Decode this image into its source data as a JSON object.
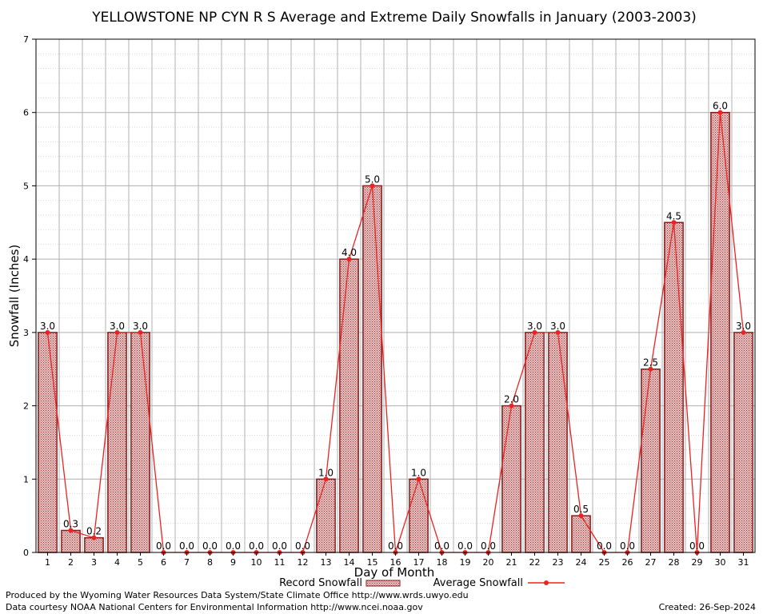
{
  "chart_data": {
    "type": "bar",
    "title": "YELLOWSTONE NP CYN R S Average and Extreme Daily Snowfalls in January (2003-2003)",
    "xlabel": "Day of Month",
    "ylabel": "Snowfall (Inches)",
    "ylim": [
      0,
      7
    ],
    "yticks": [
      0,
      1,
      2,
      3,
      4,
      5,
      6,
      7
    ],
    "grid": true,
    "categories": [
      "1",
      "2",
      "3",
      "4",
      "5",
      "6",
      "7",
      "8",
      "9",
      "10",
      "11",
      "12",
      "13",
      "14",
      "15",
      "16",
      "17",
      "18",
      "19",
      "20",
      "21",
      "22",
      "23",
      "24",
      "25",
      "26",
      "27",
      "28",
      "29",
      "30",
      "31"
    ],
    "series": [
      {
        "name": "Record Snowfall",
        "kind": "bar",
        "color": "#8b1a1a",
        "values": [
          3.0,
          0.3,
          0.2,
          3.0,
          3.0,
          0.0,
          0.0,
          0.0,
          0.0,
          0.0,
          0.0,
          0.0,
          1.0,
          4.0,
          5.0,
          0.0,
          1.0,
          0.0,
          0.0,
          0.0,
          2.0,
          3.0,
          3.0,
          0.5,
          0.0,
          0.0,
          2.5,
          4.5,
          0.0,
          6.0,
          3.0
        ]
      },
      {
        "name": "Average Snowfall",
        "kind": "line",
        "color": "#ee2222",
        "values": [
          3.0,
          0.3,
          0.2,
          3.0,
          3.0,
          0.0,
          0.0,
          0.0,
          0.0,
          0.0,
          0.0,
          0.0,
          1.0,
          4.0,
          5.0,
          0.0,
          1.0,
          0.0,
          0.0,
          0.0,
          2.0,
          3.0,
          3.0,
          0.5,
          0.0,
          0.0,
          2.5,
          4.5,
          0.0,
          6.0,
          3.0
        ]
      }
    ],
    "data_labels": [
      "3.0",
      "0.3",
      "0.2",
      "3.0",
      "3.0",
      "0.0",
      "0.0",
      "0.0",
      "0.0",
      "0.0",
      "0.0",
      "0.0",
      "1.0",
      "4.0",
      "5.0",
      "0.0",
      "1.0",
      "0.0",
      "0.0",
      "0.0",
      "2.0",
      "3.0",
      "3.0",
      "0.5",
      "0.0",
      "0.0",
      "2.5",
      "4.5",
      "0.0",
      "6.0",
      "3.0"
    ],
    "legend": [
      "Record Snowfall",
      "Average Snowfall"
    ],
    "legend_position": "bottom-center"
  },
  "footer": {
    "producer": "Produced by the Wyoming Water Resources Data System/State Climate Office http://www.wrds.uwyo.edu",
    "courtesy": "Data courtesy NOAA National Centers for Environmental Information http://www.ncei.noaa.gov",
    "created": "Created: 26-Sep-2024"
  }
}
